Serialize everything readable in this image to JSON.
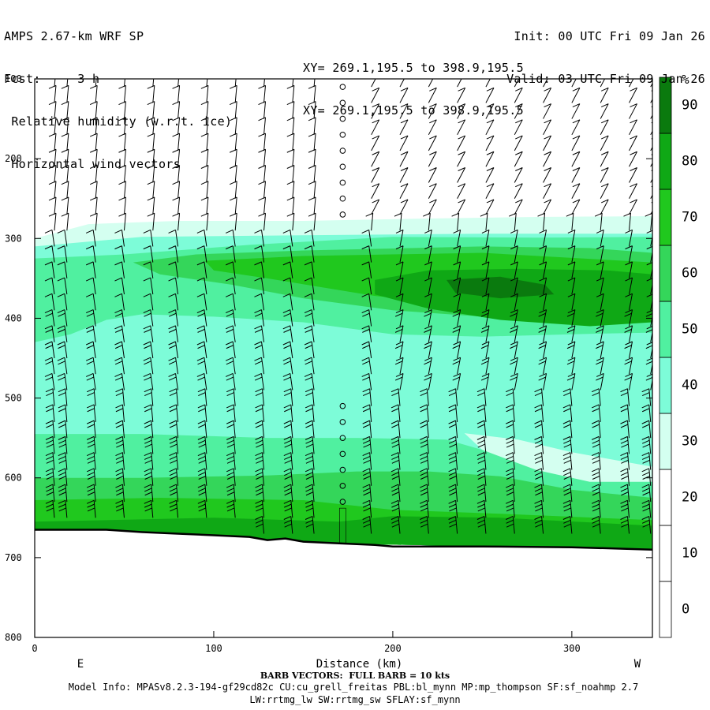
{
  "header": {
    "left": [
      "AMPS 2.67-km WRF SP",
      "Fcst:     3 h",
      " Relative humidity (w.r.t. ice)",
      " Horizontal wind vectors"
    ],
    "right": [
      "Init: 00 UTC Fri 09 Jan 26",
      "Valid: 03 UTC Fri 09 Jan 26"
    ],
    "mid": [
      "XY= 269.1,195.5 to 398.9,195.5",
      "XY= 269.1,195.5 to 398.9,195.5"
    ]
  },
  "footer": {
    "barb_note": "BARB VECTORS:  FULL BARB = 10 kts",
    "model_info": "Model Info: MPASv8.2.3-194-gf29cd82c CU:cu_grell_freitas PBL:bl_mynn MP:mp_thompson SF:sf_noahmp 2.7",
    "model_info2": "LW:rrtmg_lw SW:rrtmg_sw SFLAY:sf_mynn"
  },
  "chart_data": {
    "type": "heatmap",
    "title": "Relative humidity (w.r.t. ice)",
    "xlabel": "Distance (km)",
    "ylabel": "",
    "x_ticks": [
      0,
      100,
      200,
      300
    ],
    "y_ticks": [
      100,
      200,
      300,
      400,
      500,
      600,
      700,
      800
    ],
    "xlim": [
      0,
      345
    ],
    "ylim": [
      100,
      800
    ],
    "y_axis_inverted": true,
    "x_end_labels": {
      "left": "E",
      "right": "W"
    },
    "colorbar": {
      "unit": "%",
      "levels": [
        0,
        10,
        20,
        30,
        40,
        50,
        60,
        70,
        80,
        90
      ],
      "colors": [
        "#ffffff",
        "#ffffff",
        "#ffffff",
        "#d4fff0",
        "#7dfcd8",
        "#50f0a0",
        "#34d65a",
        "#20c81e",
        "#0fa815",
        "#0a7a0e"
      ]
    },
    "contour_bands": [
      {
        "min_rh": 30,
        "color": "#d4fff0",
        "points": [
          [
            0,
            300
          ],
          [
            30,
            282
          ],
          [
            80,
            278
          ],
          [
            150,
            278
          ],
          [
            220,
            275
          ],
          [
            280,
            273
          ],
          [
            345,
            272
          ],
          [
            345,
            690
          ],
          [
            0,
            675
          ]
        ]
      },
      {
        "min_rh": 40,
        "color": "#7dfcd8",
        "points": [
          [
            0,
            310
          ],
          [
            60,
            298
          ],
          [
            150,
            296
          ],
          [
            250,
            294
          ],
          [
            345,
            294
          ],
          [
            345,
            690
          ],
          [
            0,
            675
          ]
        ]
      },
      {
        "min_rh": 50,
        "color": "#50f0a0",
        "points": [
          [
            0,
            325
          ],
          [
            50,
            320
          ],
          [
            120,
            308
          ],
          [
            200,
            298
          ],
          [
            280,
            299
          ],
          [
            345,
            298
          ],
          [
            345,
            418
          ],
          [
            300,
            420
          ],
          [
            250,
            423
          ],
          [
            200,
            420
          ],
          [
            150,
            405
          ],
          [
            100,
            398
          ],
          [
            60,
            395
          ],
          [
            40,
            402
          ],
          [
            20,
            420
          ],
          [
            0,
            430
          ]
        ]
      },
      {
        "min_rh": 50,
        "color": "#50f0a0",
        "points": [
          [
            0,
            545
          ],
          [
            60,
            545
          ],
          [
            130,
            550
          ],
          [
            180,
            550
          ],
          [
            230,
            552
          ],
          [
            280,
            560
          ],
          [
            320,
            570
          ],
          [
            345,
            575
          ],
          [
            345,
            690
          ],
          [
            0,
            675
          ]
        ]
      },
      {
        "min_rh": 40,
        "color": "#7dfcd8",
        "points": [
          [
            215,
            540
          ],
          [
            230,
            532
          ],
          [
            250,
            535
          ],
          [
            280,
            548
          ],
          [
            310,
            560
          ],
          [
            345,
            565
          ],
          [
            345,
            600
          ],
          [
            310,
            597
          ],
          [
            280,
            585
          ],
          [
            250,
            565
          ],
          [
            230,
            552
          ]
        ]
      },
      {
        "min_rh": 30,
        "color": "#d4fff0",
        "points": [
          [
            240,
            544
          ],
          [
            270,
            552
          ],
          [
            300,
            568
          ],
          [
            345,
            586
          ],
          [
            345,
            605
          ],
          [
            310,
            605
          ],
          [
            280,
            590
          ],
          [
            250,
            565
          ]
        ]
      },
      {
        "min_rh": 60,
        "color": "#34d65a",
        "points": [
          [
            55,
            330
          ],
          [
            90,
            320
          ],
          [
            150,
            315
          ],
          [
            250,
            310
          ],
          [
            310,
            312
          ],
          [
            345,
            318
          ],
          [
            345,
            395
          ],
          [
            300,
            405
          ],
          [
            250,
            398
          ],
          [
            200,
            390
          ],
          [
            150,
            375
          ],
          [
            110,
            358
          ],
          [
            70,
            345
          ]
        ]
      },
      {
        "min_rh": 60,
        "color": "#34d65a",
        "points": [
          [
            0,
            600
          ],
          [
            60,
            600
          ],
          [
            130,
            597
          ],
          [
            180,
            592
          ],
          [
            220,
            592
          ],
          [
            260,
            598
          ],
          [
            300,
            615
          ],
          [
            345,
            625
          ],
          [
            345,
            690
          ],
          [
            0,
            675
          ]
        ]
      },
      {
        "min_rh": 70,
        "color": "#20c81e",
        "points": [
          [
            95,
            328
          ],
          [
            150,
            322
          ],
          [
            250,
            318
          ],
          [
            345,
            330
          ],
          [
            345,
            380
          ],
          [
            300,
            390
          ],
          [
            250,
            385
          ],
          [
            190,
            372
          ],
          [
            130,
            350
          ],
          [
            100,
            340
          ]
        ]
      },
      {
        "min_rh": 70,
        "color": "#20c81e",
        "points": [
          [
            0,
            628
          ],
          [
            70,
            625
          ],
          [
            150,
            628
          ],
          [
            200,
            640
          ],
          [
            260,
            645
          ],
          [
            345,
            653
          ],
          [
            345,
            690
          ],
          [
            0,
            675
          ]
        ]
      },
      {
        "min_rh": 80,
        "color": "#0fa815",
        "points": [
          [
            190,
            352
          ],
          [
            220,
            340
          ],
          [
            270,
            338
          ],
          [
            320,
            340
          ],
          [
            345,
            345
          ],
          [
            345,
            405
          ],
          [
            310,
            410
          ],
          [
            260,
            402
          ],
          [
            220,
            388
          ],
          [
            190,
            370
          ]
        ]
      },
      {
        "min_rh": 80,
        "color": "#0fa815",
        "points": [
          [
            0,
            655
          ],
          [
            100,
            650
          ],
          [
            170,
            655
          ],
          [
            200,
            648
          ],
          [
            260,
            650
          ],
          [
            345,
            660
          ],
          [
            345,
            690
          ],
          [
            0,
            675
          ]
        ]
      },
      {
        "min_rh": 90,
        "color": "#0a7a0e",
        "points": [
          [
            230,
            352
          ],
          [
            260,
            348
          ],
          [
            285,
            358
          ],
          [
            290,
            370
          ],
          [
            260,
            375
          ],
          [
            235,
            368
          ]
        ]
      }
    ],
    "terrain": {
      "color": "#ffffff",
      "surface_pressure": [
        [
          0,
          665
        ],
        [
          20,
          665
        ],
        [
          40,
          665
        ],
        [
          60,
          668
        ],
        [
          80,
          670
        ],
        [
          100,
          672
        ],
        [
          120,
          674
        ],
        [
          130,
          678
        ],
        [
          140,
          676
        ],
        [
          150,
          680
        ],
        [
          170,
          682
        ],
        [
          190,
          684
        ],
        [
          200,
          686
        ],
        [
          250,
          686
        ],
        [
          300,
          687
        ],
        [
          345,
          690
        ]
      ]
    },
    "wind_barbs": {
      "x_positions": [
        11,
        18,
        34,
        50,
        66,
        80,
        96,
        112,
        128,
        144,
        156,
        172,
        188,
        204,
        220,
        236,
        252,
        268,
        284,
        300,
        316,
        332,
        344
      ],
      "levels": [
        110,
        130,
        150,
        170,
        190,
        210,
        230,
        250,
        270,
        290,
        310,
        330,
        350,
        370,
        390,
        410,
        430,
        450,
        470,
        490,
        510,
        530,
        550,
        570,
        590,
        610,
        630,
        650,
        670
      ],
      "calm_column_x": 172,
      "units": "kts",
      "full_barb_kts": 10
    }
  }
}
